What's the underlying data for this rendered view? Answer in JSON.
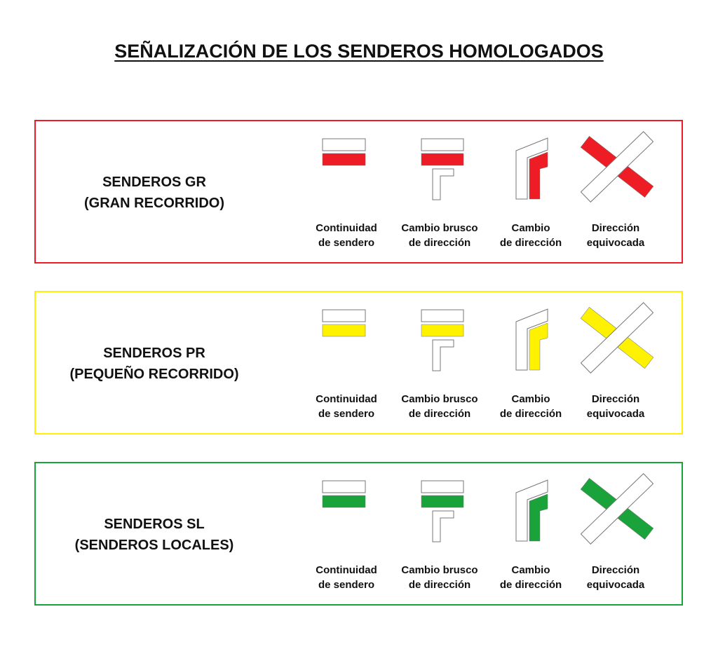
{
  "title": "SEÑALIZACIÓN DE LOS SENDEROS HOMOLOGADOS",
  "sections": [
    {
      "line1": "SENDEROS GR",
      "line2": "(GRAN RECORRIDO)",
      "color": "#ee1c25"
    },
    {
      "line1": "SENDEROS PR",
      "line2": "(PEQUEÑO RECORRIDO)",
      "color": "#fff200"
    },
    {
      "line1": "SENDEROS SL",
      "line2": "(SENDEROS LOCALES)",
      "color": "#1aa33b"
    }
  ],
  "labels": [
    {
      "l1": "Continuidad",
      "l2": "de sendero",
      "icon": "continuity-mark-icon"
    },
    {
      "l1": "Cambio brusco",
      "l2": "de dirección",
      "icon": "sharp-turn-mark-icon"
    },
    {
      "l1": "Cambio",
      "l2": "de dirección",
      "icon": "turn-mark-icon"
    },
    {
      "l1": "Dirección",
      "l2": "equivocada",
      "icon": "wrong-way-mark-icon"
    }
  ]
}
